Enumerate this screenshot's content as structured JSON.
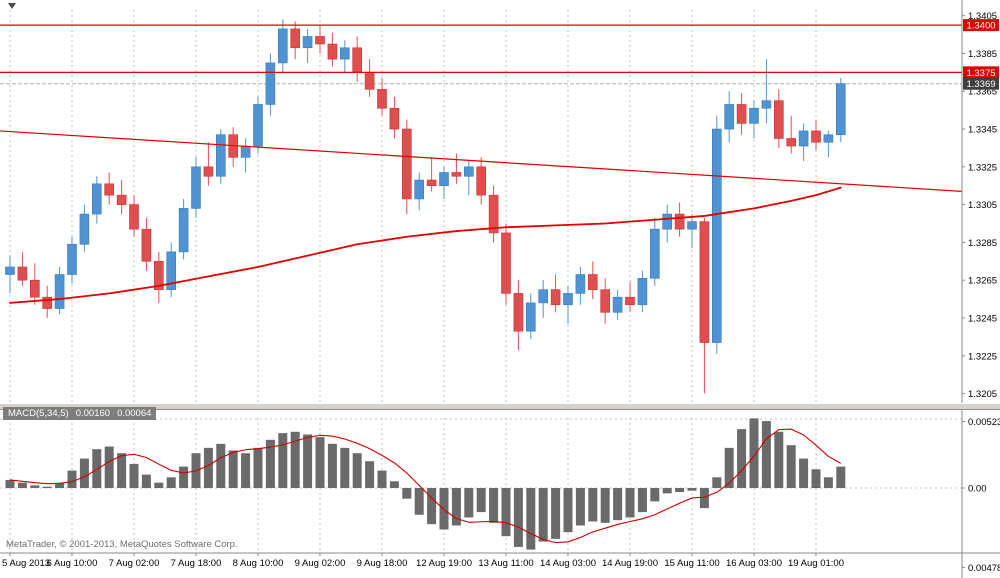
{
  "chart_data": {
    "type": "candlestick",
    "main_pane": {
      "ylim": [
        1.32,
        1.3408
      ],
      "price_ticks": [
        "1.3405",
        "1.3385",
        "1.3365",
        "1.3345",
        "1.3325",
        "1.3305",
        "1.3285",
        "1.3265",
        "1.3245",
        "1.3225",
        "1.3205"
      ],
      "candles": [
        [
          1.3268,
          1.3278,
          1.3258,
          1.3272
        ],
        [
          1.3272,
          1.328,
          1.3262,
          1.3265
        ],
        [
          1.3265,
          1.3274,
          1.3252,
          1.3256
        ],
        [
          1.3256,
          1.3262,
          1.3245,
          1.325
        ],
        [
          1.325,
          1.3272,
          1.3247,
          1.3268
        ],
        [
          1.3268,
          1.3288,
          1.3263,
          1.3284
        ],
        [
          1.3284,
          1.3305,
          1.328,
          1.33
        ],
        [
          1.33,
          1.332,
          1.3295,
          1.3316
        ],
        [
          1.3316,
          1.3322,
          1.3305,
          1.331
        ],
        [
          1.331,
          1.3318,
          1.33,
          1.3305
        ],
        [
          1.3305,
          1.331,
          1.3288,
          1.3292
        ],
        [
          1.3292,
          1.3298,
          1.327,
          1.3275
        ],
        [
          1.3275,
          1.328,
          1.3253,
          1.326
        ],
        [
          1.326,
          1.3285,
          1.3256,
          1.328
        ],
        [
          1.328,
          1.3308,
          1.3276,
          1.3303
        ],
        [
          1.3303,
          1.333,
          1.3298,
          1.3325
        ],
        [
          1.3325,
          1.3338,
          1.3315,
          1.332
        ],
        [
          1.332,
          1.3345,
          1.3316,
          1.3342
        ],
        [
          1.3342,
          1.3346,
          1.3325,
          1.333
        ],
        [
          1.333,
          1.334,
          1.3322,
          1.3336
        ],
        [
          1.3336,
          1.3362,
          1.3332,
          1.3358
        ],
        [
          1.3358,
          1.3385,
          1.3352,
          1.338
        ],
        [
          1.338,
          1.3403,
          1.3375,
          1.3398
        ],
        [
          1.3398,
          1.3402,
          1.3382,
          1.3388
        ],
        [
          1.3388,
          1.3398,
          1.338,
          1.3394
        ],
        [
          1.3394,
          1.34,
          1.3385,
          1.339
        ],
        [
          1.339,
          1.3396,
          1.3378,
          1.3382
        ],
        [
          1.3382,
          1.3392,
          1.3375,
          1.3388
        ],
        [
          1.3388,
          1.3394,
          1.337,
          1.3375
        ],
        [
          1.3375,
          1.3382,
          1.3362,
          1.3366
        ],
        [
          1.3366,
          1.3372,
          1.3352,
          1.3356
        ],
        [
          1.3356,
          1.3362,
          1.334,
          1.3345
        ],
        [
          1.3345,
          1.335,
          1.33,
          1.3308
        ],
        [
          1.3308,
          1.3322,
          1.3302,
          1.3318
        ],
        [
          1.3318,
          1.333,
          1.3312,
          1.3315
        ],
        [
          1.3315,
          1.3325,
          1.3308,
          1.3322
        ],
        [
          1.3322,
          1.3332,
          1.3316,
          1.332
        ],
        [
          1.332,
          1.3328,
          1.331,
          1.3325
        ],
        [
          1.3325,
          1.333,
          1.3305,
          1.331
        ],
        [
          1.331,
          1.3315,
          1.3285,
          1.329
        ],
        [
          1.329,
          1.3295,
          1.3252,
          1.3258
        ],
        [
          1.3258,
          1.3265,
          1.3228,
          1.3238
        ],
        [
          1.3238,
          1.3258,
          1.3234,
          1.3253
        ],
        [
          1.3253,
          1.3265,
          1.3245,
          1.326
        ],
        [
          1.326,
          1.3268,
          1.3248,
          1.3252
        ],
        [
          1.3252,
          1.3262,
          1.3242,
          1.3258
        ],
        [
          1.3258,
          1.3272,
          1.3252,
          1.3268
        ],
        [
          1.3268,
          1.3275,
          1.3255,
          1.326
        ],
        [
          1.326,
          1.3266,
          1.3242,
          1.3248
        ],
        [
          1.3248,
          1.326,
          1.3244,
          1.3256
        ],
        [
          1.3256,
          1.3264,
          1.3248,
          1.3252
        ],
        [
          1.3252,
          1.327,
          1.3248,
          1.3266
        ],
        [
          1.3266,
          1.3298,
          1.3262,
          1.3292
        ],
        [
          1.3292,
          1.3305,
          1.3285,
          1.33
        ],
        [
          1.33,
          1.3306,
          1.3288,
          1.3292
        ],
        [
          1.3292,
          1.33,
          1.3282,
          1.3296
        ],
        [
          1.3296,
          1.3298,
          1.3205,
          1.3232
        ],
        [
          1.3232,
          1.3352,
          1.3226,
          1.3345
        ],
        [
          1.3345,
          1.3365,
          1.3338,
          1.3358
        ],
        [
          1.3358,
          1.3364,
          1.3342,
          1.3348
        ],
        [
          1.3348,
          1.336,
          1.334,
          1.3356
        ],
        [
          1.3356,
          1.3382,
          1.3348,
          1.336
        ],
        [
          1.336,
          1.3366,
          1.3335,
          1.334
        ],
        [
          1.334,
          1.3352,
          1.3332,
          1.3336
        ],
        [
          1.3336,
          1.3348,
          1.3328,
          1.3344
        ],
        [
          1.3344,
          1.335,
          1.3334,
          1.3338
        ],
        [
          1.3338,
          1.3344,
          1.333,
          1.3342
        ],
        [
          1.3342,
          1.3372,
          1.3338,
          1.3369
        ]
      ],
      "horizontal_lines": [
        {
          "price": 1.34,
          "label": "1.3400"
        },
        {
          "price": 1.3375,
          "label": "1.3375"
        }
      ],
      "current_price": {
        "value": 1.3369,
        "label": "1.3369"
      },
      "trend_line": {
        "price_left": 1.3344,
        "price_right": 1.3312
      },
      "ma_line": {
        "points": [
          [
            0,
            1.3253
          ],
          [
            4,
            1.3255
          ],
          [
            8,
            1.3258
          ],
          [
            12,
            1.3262
          ],
          [
            16,
            1.3267
          ],
          [
            20,
            1.3272
          ],
          [
            24,
            1.3278
          ],
          [
            28,
            1.3284
          ],
          [
            32,
            1.3288
          ],
          [
            36,
            1.3291
          ],
          [
            40,
            1.3293
          ],
          [
            44,
            1.3294
          ],
          [
            48,
            1.3295
          ],
          [
            52,
            1.3297
          ],
          [
            56,
            1.3299
          ],
          [
            60,
            1.3303
          ],
          [
            63,
            1.3307
          ],
          [
            65,
            1.331
          ],
          [
            67,
            1.3314
          ]
        ]
      }
    },
    "macd_pane": {
      "label": "MACD(5,34,5)",
      "value": "0.00160",
      "signal_value": "0.00064",
      "ylim": [
        -0.00478,
        0.00523
      ],
      "axis_labels": [
        {
          "position": "top",
          "text": "0.00523"
        },
        {
          "position": "zero",
          "text": "0.00"
        },
        {
          "position": "bottom",
          "text": "0.00478"
        }
      ],
      "signal_period": 5,
      "histogram": [
        0.0006,
        0.0004,
        0.0002,
        0.0001,
        0.0004,
        0.0013,
        0.0022,
        0.0029,
        0.0031,
        0.0026,
        0.0018,
        0.001,
        0.0004,
        0.0008,
        0.0016,
        0.0026,
        0.003,
        0.0033,
        0.0028,
        0.0026,
        0.003,
        0.0036,
        0.0041,
        0.0042,
        0.004,
        0.0038,
        0.0033,
        0.003,
        0.0026,
        0.002,
        0.0013,
        0.0005,
        -0.0008,
        -0.002,
        -0.0027,
        -0.0031,
        -0.0028,
        -0.0022,
        -0.0018,
        -0.0026,
        -0.0036,
        -0.0044,
        -0.0046,
        -0.004,
        -0.0038,
        -0.0033,
        -0.0028,
        -0.0025,
        -0.0026,
        -0.0024,
        -0.0022,
        -0.0018,
        -0.001,
        -0.0004,
        -0.0003,
        -0.0002,
        -0.0015,
        0.0008,
        0.003,
        0.0044,
        0.0052,
        0.005,
        0.0042,
        0.0032,
        0.0022,
        0.0014,
        0.0008,
        0.0016
      ]
    },
    "x_axis": {
      "tick_every": 5,
      "labels": [
        "5 Aug 2013",
        "6 Aug 10:00",
        "7 Aug 02:00",
        "7 Aug 18:00",
        "8 Aug 10:00",
        "9 Aug 02:00",
        "9 Aug 18:00",
        "12 Aug 19:00",
        "13 Aug 11:00",
        "14 Aug 03:00",
        "14 Aug 19:00",
        "15 Aug 11:00",
        "16 Aug 03:00",
        "19 Aug 01:00"
      ]
    },
    "colors": {
      "bull": "#4f93d2",
      "bull_stroke": "#3b7ab8",
      "bear": "#e04f4f",
      "bear_stroke": "#c43434",
      "hist": "#6a6a6a",
      "signal": "#cc0000",
      "red_line": "#e00000",
      "grid": "#c2c2c2",
      "axis_line": "#8a8a8a",
      "text": "#000000",
      "current_line": "#b0b0b0",
      "badge_red": "#e00000",
      "badge_dark": "#3f3f3f"
    }
  },
  "icons": {
    "shift_marker": "triangle-down"
  },
  "footer": {
    "watermark": "MetaTrader, © 2001-2013, MetaQuotes Software Corp."
  }
}
